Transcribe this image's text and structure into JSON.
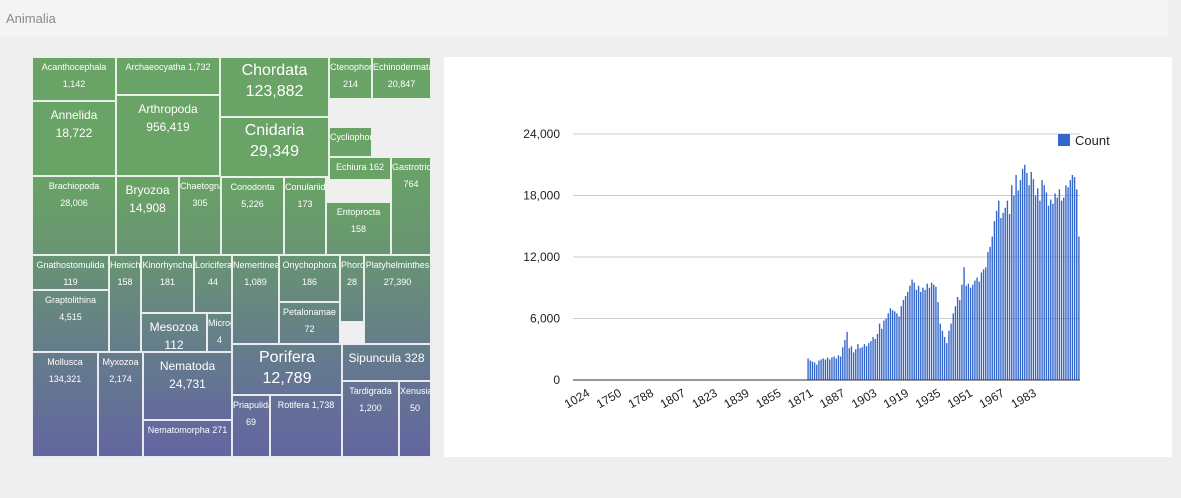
{
  "header": {
    "title": "Animalia"
  },
  "treemap": {
    "color_top": "#69a365",
    "color_bottom": "#6366a0",
    "tiles": [
      {
        "name": "Acanthocephala",
        "value": "1,142",
        "x": 0,
        "y": 0,
        "w": 84,
        "h": 44,
        "size": "s"
      },
      {
        "name": "Annelida",
        "value": "18,722",
        "x": 0,
        "y": 44,
        "w": 84,
        "h": 75,
        "size": "m"
      },
      {
        "name": "Archaeocyatha 1,732",
        "value": "",
        "x": 84,
        "y": 0,
        "w": 104,
        "h": 38,
        "size": "s"
      },
      {
        "name": "Arthropoda",
        "value": "956,419",
        "x": 84,
        "y": 38,
        "w": 104,
        "h": 81,
        "size": "m"
      },
      {
        "name": "Chordata",
        "value": "123,882",
        "x": 188,
        "y": 0,
        "w": 109,
        "h": 60,
        "size": "l"
      },
      {
        "name": "Cnidaria",
        "value": "29,349",
        "x": 188,
        "y": 60,
        "w": 109,
        "h": 60,
        "size": "l"
      },
      {
        "name": "Ctenophora",
        "value": "214",
        "x": 297,
        "y": 0,
        "w": 43,
        "h": 42,
        "size": "s"
      },
      {
        "name": "Echinodermata",
        "value": "20,847",
        "x": 340,
        "y": 0,
        "w": 59,
        "h": 42,
        "size": "s"
      },
      {
        "name": "Cycliophora",
        "value": "",
        "x": 297,
        "y": 70,
        "w": 43,
        "h": 30,
        "size": "s"
      },
      {
        "name": "Echiura 162",
        "value": "",
        "x": 297,
        "y": 100,
        "w": 62,
        "h": 23,
        "size": "s"
      },
      {
        "name": "Gastrotricha",
        "value": "764",
        "x": 359,
        "y": 100,
        "w": 40,
        "h": 98,
        "size": "s"
      },
      {
        "name": "Brachiopoda",
        "value": "28,006",
        "x": 0,
        "y": 119,
        "w": 84,
        "h": 79,
        "size": "s"
      },
      {
        "name": "Bryozoa",
        "value": "14,908",
        "x": 84,
        "y": 119,
        "w": 63,
        "h": 79,
        "size": "m"
      },
      {
        "name": "Chaetognatha",
        "value": "305",
        "x": 147,
        "y": 119,
        "w": 42,
        "h": 79,
        "size": "s"
      },
      {
        "name": "Conodonta",
        "value": "5,226",
        "x": 189,
        "y": 120,
        "w": 63,
        "h": 78,
        "size": "s"
      },
      {
        "name": "Conulariida",
        "value": "173",
        "x": 252,
        "y": 120,
        "w": 42,
        "h": 78,
        "size": "s"
      },
      {
        "name": "Entoprocta",
        "value": "158",
        "x": 294,
        "y": 145,
        "w": 65,
        "h": 53,
        "size": "s"
      },
      {
        "name": "Gnathostomulida",
        "value": "119",
        "x": 0,
        "y": 198,
        "w": 77,
        "h": 35,
        "size": "s"
      },
      {
        "name": "Graptolithina",
        "value": "4,515",
        "x": 0,
        "y": 233,
        "w": 77,
        "h": 62,
        "size": "s"
      },
      {
        "name": "Hemichordata",
        "value": "158",
        "x": 77,
        "y": 198,
        "w": 32,
        "h": 97,
        "size": "s"
      },
      {
        "name": "Kinorhyncha",
        "value": "181",
        "x": 109,
        "y": 198,
        "w": 53,
        "h": 58,
        "size": "s"
      },
      {
        "name": "Loricifera",
        "value": "44",
        "x": 162,
        "y": 198,
        "w": 38,
        "h": 58,
        "size": "s"
      },
      {
        "name": "Mesozoa",
        "value": "112",
        "x": 109,
        "y": 256,
        "w": 66,
        "h": 39,
        "size": "m"
      },
      {
        "name": "Micrognathozoa",
        "value": "4",
        "x": 175,
        "y": 256,
        "w": 25,
        "h": 39,
        "size": "s"
      },
      {
        "name": "Nemertinea",
        "value": "1,089",
        "x": 200,
        "y": 198,
        "w": 47,
        "h": 89,
        "size": "s"
      },
      {
        "name": "Onychophora",
        "value": "186",
        "x": 247,
        "y": 198,
        "w": 61,
        "h": 47,
        "size": "s"
      },
      {
        "name": "Petalonamae",
        "value": "72",
        "x": 247,
        "y": 245,
        "w": 61,
        "h": 42,
        "size": "s"
      },
      {
        "name": "Phoronida",
        "value": "28",
        "x": 308,
        "y": 198,
        "w": 24,
        "h": 67,
        "size": "s"
      },
      {
        "name": "Platyhelminthes",
        "value": "27,390",
        "x": 332,
        "y": 198,
        "w": 67,
        "h": 89,
        "size": "s"
      },
      {
        "name": "Mollusca",
        "value": "134,321",
        "x": 0,
        "y": 295,
        "w": 66,
        "h": 105,
        "size": "s"
      },
      {
        "name": "Myxozoa",
        "value": "2,174",
        "x": 66,
        "y": 295,
        "w": 45,
        "h": 105,
        "size": "s"
      },
      {
        "name": "Nematoda",
        "value": "24,731",
        "x": 111,
        "y": 295,
        "w": 89,
        "h": 68,
        "size": "m"
      },
      {
        "name": "Nematomorpha 271",
        "value": "",
        "x": 111,
        "y": 363,
        "w": 89,
        "h": 37,
        "size": "s"
      },
      {
        "name": "Porifera",
        "value": "12,789",
        "x": 200,
        "y": 287,
        "w": 110,
        "h": 51,
        "size": "l"
      },
      {
        "name": "Priapulida",
        "value": "69",
        "x": 200,
        "y": 338,
        "w": 38,
        "h": 62,
        "size": "s"
      },
      {
        "name": "Rotifera 1,738",
        "value": "",
        "x": 238,
        "y": 338,
        "w": 72,
        "h": 62,
        "size": "s"
      },
      {
        "name": "Sipuncula 328",
        "value": "",
        "x": 310,
        "y": 287,
        "w": 89,
        "h": 37,
        "size": "m"
      },
      {
        "name": "Tardigrada",
        "value": "1,200",
        "x": 310,
        "y": 324,
        "w": 57,
        "h": 76,
        "size": "s"
      },
      {
        "name": "Xenusia",
        "value": "50",
        "x": 367,
        "y": 324,
        "w": 32,
        "h": 76,
        "size": "s"
      }
    ]
  },
  "chart_data": {
    "type": "bar",
    "title": "",
    "xlabel": "",
    "ylabel": "",
    "ylim": [
      0,
      24000
    ],
    "yticks": [
      "0",
      "6,000",
      "12,000",
      "18,000",
      "24,000"
    ],
    "xtick_labels": [
      "1024",
      "1750",
      "1788",
      "1807",
      "1823",
      "1839",
      "1855",
      "1871",
      "1887",
      "1903",
      "1919",
      "1935",
      "1951",
      "1967",
      "1983"
    ],
    "legend": {
      "position": "top-right",
      "label": "Count"
    },
    "grid": true,
    "color": "#3366cc",
    "series": [
      {
        "name": "Count",
        "values": [
          0,
          0,
          0,
          0,
          0,
          0,
          0,
          0,
          0,
          0,
          0,
          0,
          0,
          0,
          0,
          0,
          0,
          0,
          0,
          0,
          0,
          0,
          0,
          0,
          0,
          0,
          0,
          0,
          0,
          0,
          0,
          0,
          0,
          0,
          0,
          0,
          0,
          0,
          0,
          0,
          0,
          0,
          0,
          0,
          0,
          0,
          0,
          0,
          0,
          0,
          0,
          0,
          0,
          0,
          0,
          0,
          0,
          0,
          0,
          0,
          0,
          0,
          0,
          0,
          0,
          0,
          0,
          0,
          0,
          0,
          0,
          0,
          0,
          0,
          0,
          0,
          0,
          0,
          0,
          0,
          0,
          0,
          0,
          0,
          0,
          0,
          0,
          0,
          0,
          0,
          0,
          0,
          0,
          0,
          0,
          0,
          0,
          0,
          0,
          0,
          0,
          0,
          0,
          0,
          0,
          0,
          0,
          0,
          2100,
          1900,
          1800,
          1700,
          1500,
          1900,
          2000,
          2100,
          2000,
          2200,
          2000,
          2200,
          2300,
          2100,
          2400,
          2300,
          3200,
          3900,
          4700,
          3100,
          3300,
          2700,
          3000,
          3500,
          3100,
          3200,
          3500,
          3300,
          3600,
          3800,
          4200,
          4000,
          4500,
          5500,
          5000,
          5800,
          6000,
          6500,
          7000,
          6800,
          6700,
          6500,
          6200,
          7200,
          7800,
          8200,
          8600,
          9200,
          9800,
          9500,
          8800,
          9200,
          8600,
          9000,
          8800,
          9400,
          9000,
          9500,
          9300,
          9100,
          7600,
          5500,
          4800,
          4200,
          3600,
          4800,
          5500,
          6500,
          7200,
          8100,
          7800,
          9300,
          11000,
          9200,
          9400,
          9000,
          9300,
          9700,
          10000,
          9600,
          10500,
          10800,
          11000,
          12500,
          13000,
          14000,
          15500,
          16500,
          17500,
          15800,
          16300,
          16800,
          17500,
          16200,
          19000,
          18000,
          20000,
          18500,
          19500,
          20600,
          21000,
          20200,
          19000,
          20300,
          19600,
          18000,
          18700,
          17500,
          19500,
          19000,
          18300,
          17000,
          17600,
          17200,
          18200,
          17800,
          18600,
          17500,
          17800,
          19000,
          18800,
          19500,
          20000,
          19800,
          18600,
          14000
        ]
      }
    ]
  }
}
